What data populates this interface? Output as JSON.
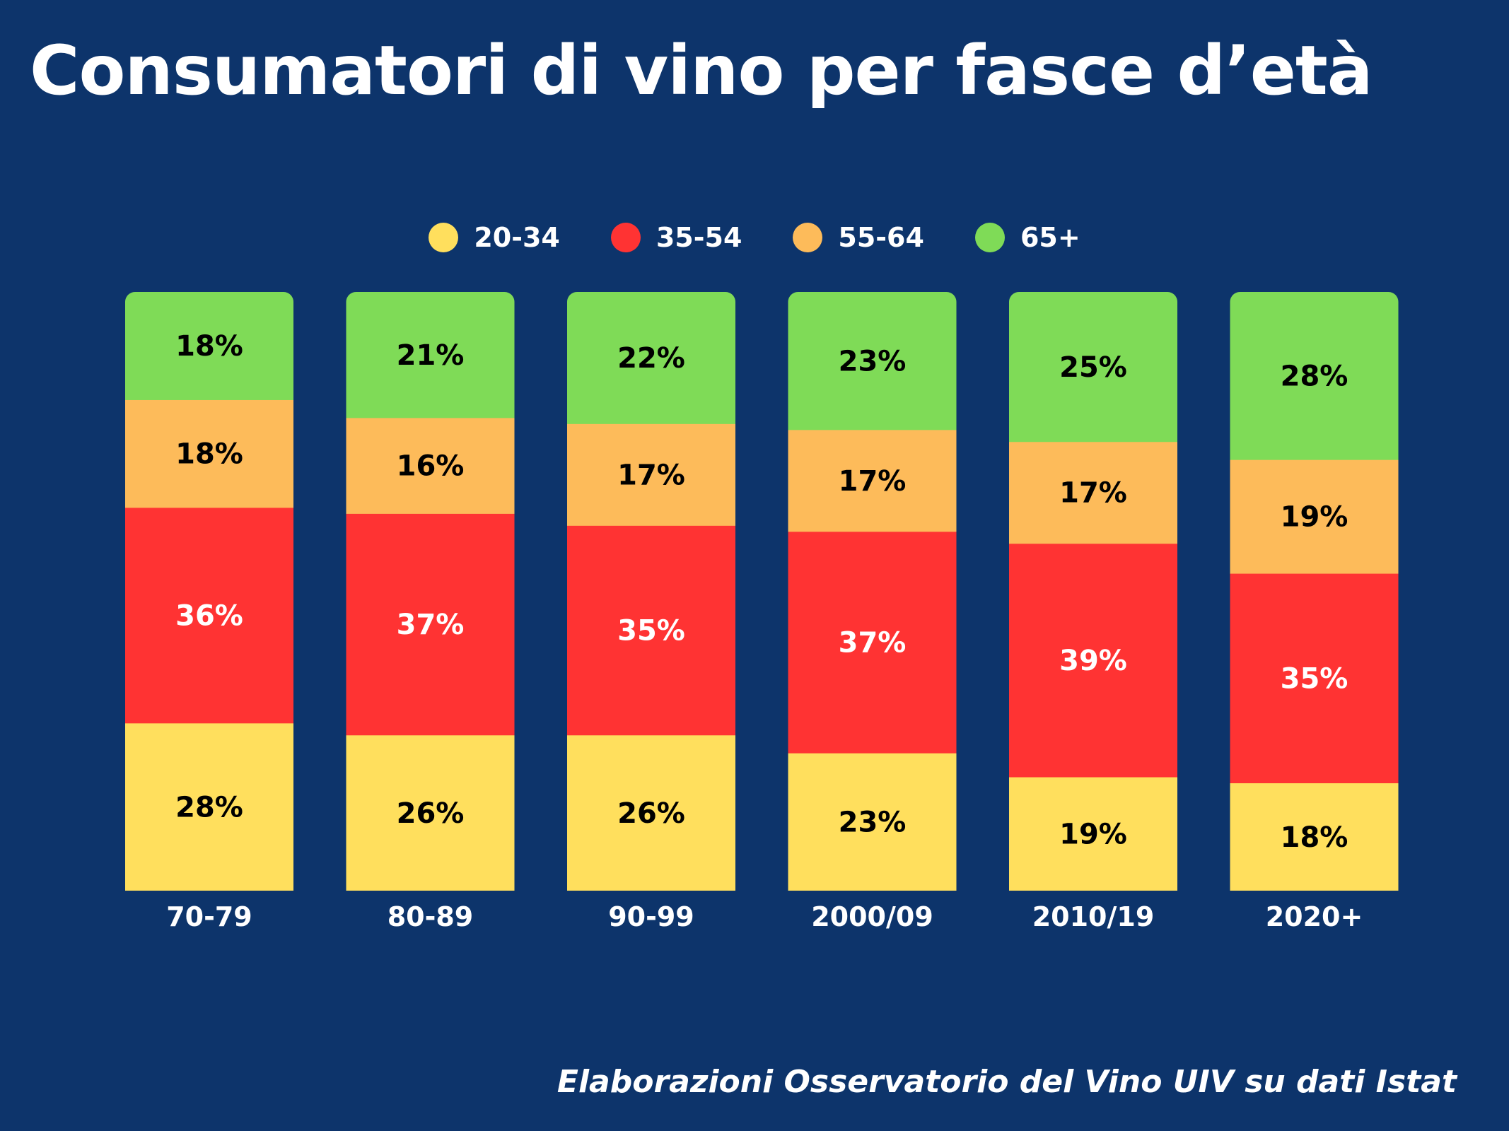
{
  "title": "Consumatori di vino per fasce d’età",
  "source": "Elaborazioni Osservatorio del Vino UIV su dati Istat",
  "legend": [
    {
      "label": "20-34",
      "color": "#ffdf5d"
    },
    {
      "label": "35-54",
      "color": "#ff3333"
    },
    {
      "label": "55-64",
      "color": "#fdbb5a"
    },
    {
      "label": "65+",
      "color": "#7fdb57"
    }
  ],
  "chart_data": {
    "type": "bar",
    "stacked": true,
    "title": "Consumatori di vino per fasce d’età",
    "categories": [
      "70-79",
      "80-89",
      "90-99",
      "2000/09",
      "2010/19",
      "2020+"
    ],
    "series": [
      {
        "name": "20-34",
        "color": "#ffdf5d",
        "label_color": "#000000",
        "values": [
          28,
          26,
          26,
          23,
          19,
          18
        ],
        "labels": [
          "28%",
          "26%",
          "26%",
          "23%",
          "19%",
          "18%"
        ]
      },
      {
        "name": "35-54",
        "color": "#ff3333",
        "label_color": "#ffffff",
        "values": [
          36,
          37,
          35,
          37,
          39,
          35
        ],
        "labels": [
          "36%",
          "37%",
          "35%",
          "37%",
          "39%",
          "35%"
        ]
      },
      {
        "name": "55-64",
        "color": "#fdbb5a",
        "label_color": "#000000",
        "values": [
          18,
          16,
          17,
          17,
          17,
          19
        ],
        "labels": [
          "18%",
          "16%",
          "17%",
          "17%",
          "17%",
          "19%"
        ]
      },
      {
        "name": "65+",
        "color": "#7fdb57",
        "label_color": "#000000",
        "values": [
          18,
          21,
          22,
          23,
          25,
          28
        ],
        "labels": [
          "18%",
          "21%",
          "22%",
          "23%",
          "25%",
          "28%"
        ]
      }
    ],
    "legend_position": "top-center",
    "grid": false
  }
}
